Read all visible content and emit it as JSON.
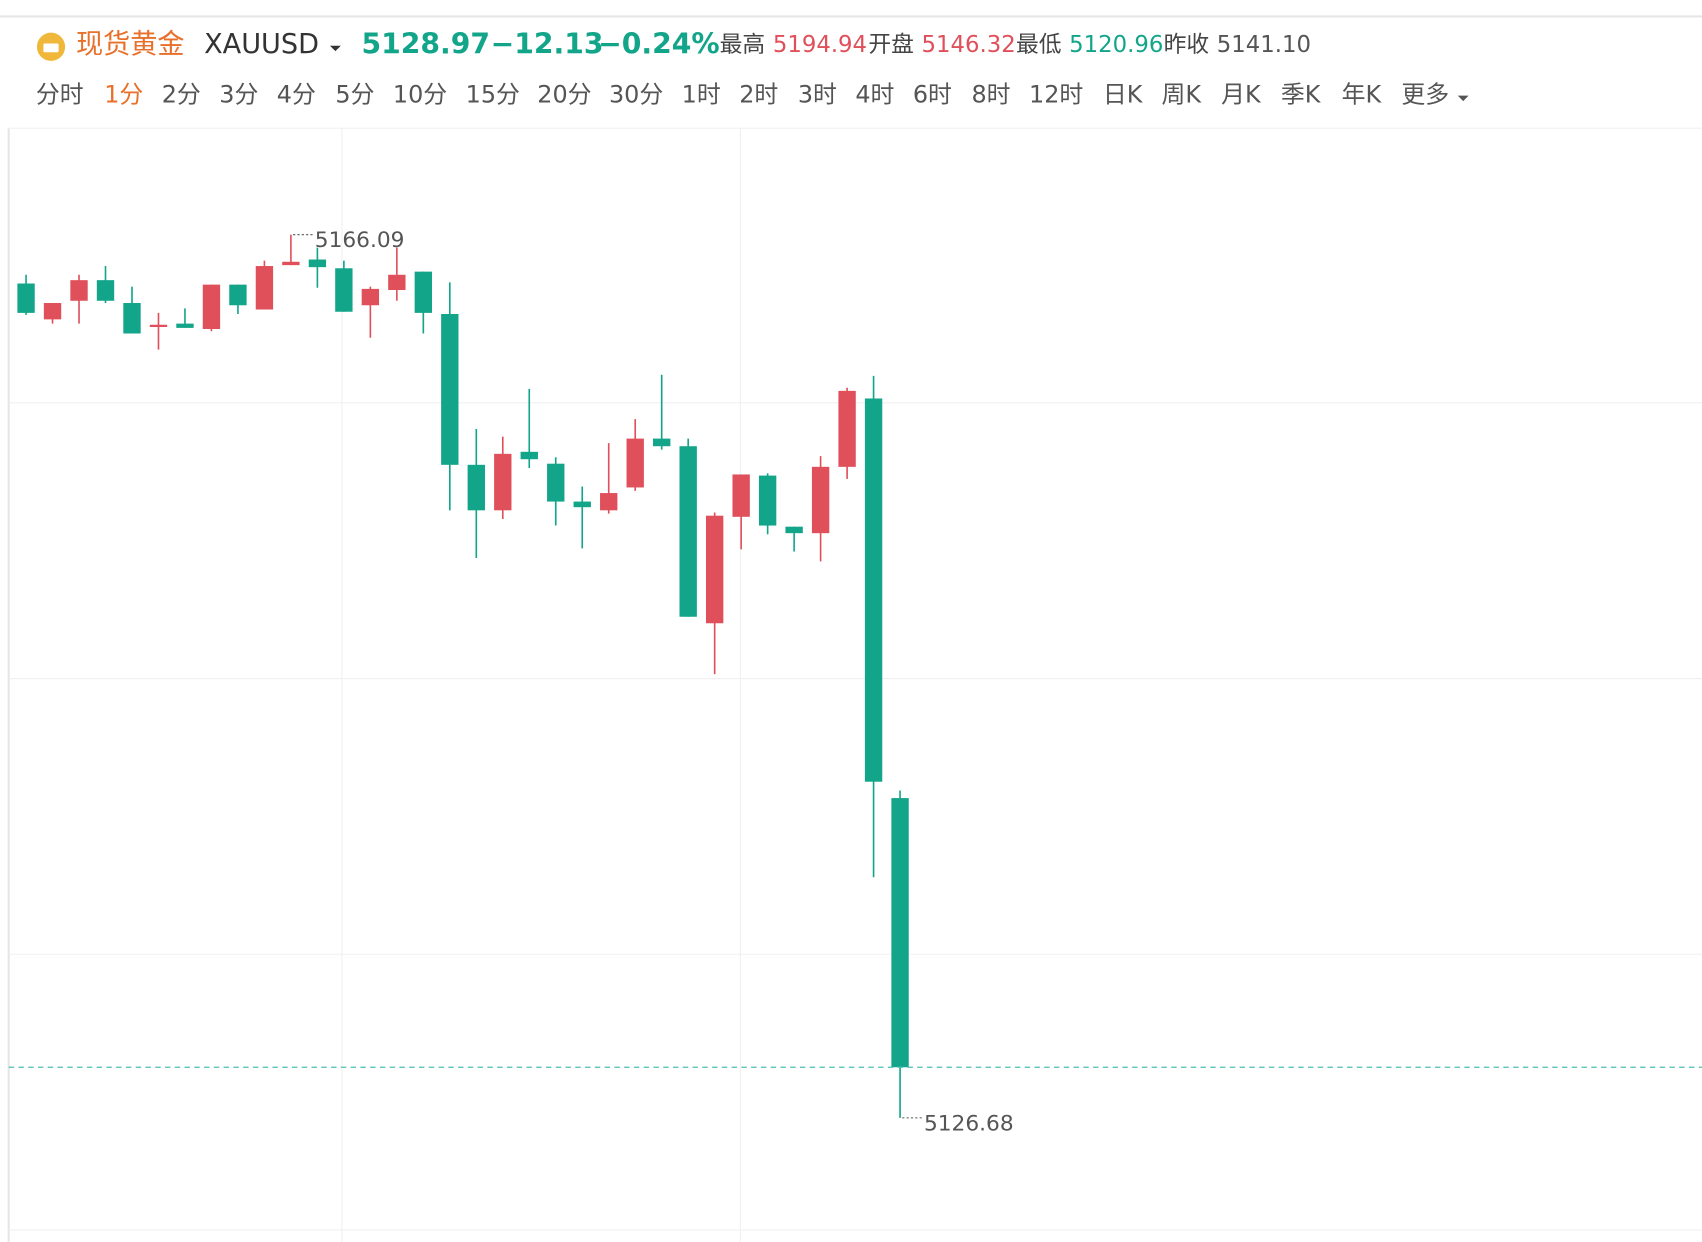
{
  "header": {
    "name": "现货黄金",
    "symbol": "XAUUSD",
    "price": "5128.97",
    "change": "−12.13",
    "change_pct": "−0.24%",
    "quote_color": "#13a58a",
    "stats": [
      {
        "label": "最高",
        "value": "5194.94",
        "color": "#e0505b"
      },
      {
        "label": "开盘",
        "value": "5146.32",
        "color": "#e0505b"
      },
      {
        "label": "最低",
        "value": "5120.96",
        "color": "#13a58a"
      },
      {
        "label": "昨收",
        "value": "5141.10",
        "color": "#555"
      }
    ]
  },
  "tabs": {
    "items": [
      "分时",
      "1分",
      "2分",
      "3分",
      "4分",
      "5分",
      "10分",
      "15分",
      "20分",
      "30分",
      "1时",
      "2时",
      "3时",
      "4时",
      "6时",
      "8时",
      "12时",
      "日K",
      "周K",
      "月K",
      "季K",
      "年K",
      "更多"
    ],
    "active": 1
  },
  "chart_data": {
    "type": "candlestick",
    "up_color": "#e0505b",
    "down_color": "#13a58a",
    "ylim": [
      5121.68,
      5170.84
    ],
    "high_label": "5166.09",
    "low_label": "5126.68",
    "open": [
      5163.91,
      5162.31,
      5163.14,
      5164.06,
      5163.04,
      5161.97,
      5162.12,
      5161.88,
      5163.86,
      5162.75,
      5164.73,
      5164.98,
      5164.59,
      5162.94,
      5163.62,
      5164.44,
      5162.55,
      5155.82,
      5153.79,
      5156.4,
      5155.87,
      5154.18,
      5153.79,
      5154.81,
      5156.99,
      5156.65,
      5148.75,
      5153.5,
      5155.34,
      5153.06,
      5152.77,
      5155.73,
      5158.78,
      5140.95
    ],
    "high": [
      5164.3,
      5163.04,
      5164.3,
      5164.69,
      5163.77,
      5162.6,
      5162.8,
      5163.86,
      5163.86,
      5164.93,
      5166.09,
      5165.51,
      5164.93,
      5163.77,
      5165.51,
      5164.44,
      5163.96,
      5157.42,
      5157.08,
      5159.21,
      5156.16,
      5154.85,
      5156.79,
      5157.86,
      5159.84,
      5156.99,
      5153.69,
      5155.39,
      5155.44,
      5153.06,
      5156.21,
      5159.26,
      5159.79,
      5141.29
    ],
    "low": [
      5162.51,
      5162.12,
      5162.12,
      5163.04,
      5161.68,
      5160.96,
      5161.93,
      5161.78,
      5162.55,
      5162.75,
      5164.73,
      5163.72,
      5162.65,
      5161.49,
      5163.14,
      5161.68,
      5153.79,
      5151.66,
      5153.4,
      5155.68,
      5153.11,
      5152.09,
      5153.64,
      5154.66,
      5156.5,
      5149.04,
      5146.48,
      5152.05,
      5152.72,
      5151.95,
      5151.51,
      5155.19,
      5137.42,
      5126.68
    ],
    "close": [
      5162.6,
      5163.04,
      5164.06,
      5163.14,
      5161.68,
      5162.07,
      5161.93,
      5163.86,
      5162.94,
      5164.69,
      5164.88,
      5164.64,
      5162.65,
      5163.67,
      5164.3,
      5162.6,
      5155.82,
      5153.79,
      5156.31,
      5156.07,
      5154.18,
      5153.93,
      5154.56,
      5156.99,
      5156.65,
      5149.04,
      5153.55,
      5155.39,
      5153.11,
      5152.77,
      5155.73,
      5159.12,
      5141.68,
      5128.94
    ]
  }
}
